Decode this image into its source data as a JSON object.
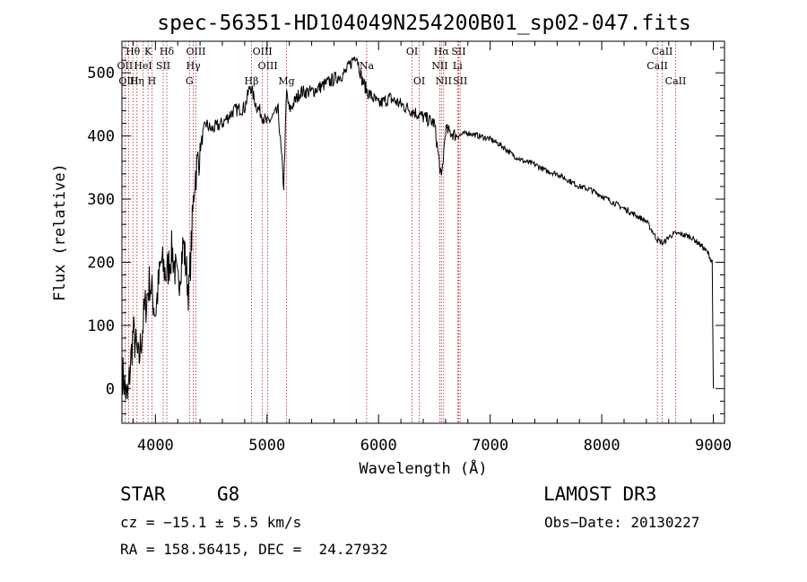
{
  "chart_data": {
    "type": "line",
    "title": "spec-56351-HD104049N254200B01_sp02-047.fits",
    "xlabel": "Wavelength (Å)",
    "ylabel": "Flux (relative)",
    "xlim": [
      3700,
      9100
    ],
    "ylim": [
      -55,
      550
    ],
    "xticks": [
      4000,
      5000,
      6000,
      7000,
      8000,
      9000
    ],
    "yticks": [
      0,
      100,
      200,
      300,
      400,
      500
    ],
    "line_color": "#000000",
    "marker_color": "#b22222",
    "series": [
      {
        "name": "flux",
        "x": [
          3700,
          3750,
          3800,
          3850,
          3900,
          3950,
          4000,
          4050,
          4100,
          4150,
          4200,
          4250,
          4300,
          4350,
          4400,
          4450,
          4500,
          4600,
          4700,
          4800,
          4850,
          4900,
          5000,
          5100,
          5150,
          5175,
          5200,
          5300,
          5400,
          5500,
          5600,
          5700,
          5800,
          5850,
          5900,
          6000,
          6100,
          6200,
          6300,
          6400,
          6500,
          6563,
          6600,
          6700,
          6800,
          6900,
          7000,
          7100,
          7200,
          7300,
          7400,
          7500,
          7600,
          7700,
          7800,
          7900,
          8000,
          8100,
          8200,
          8300,
          8400,
          8500,
          8550,
          8600,
          8650,
          8700,
          8800,
          8900,
          8950,
          8990,
          9000
        ],
        "y": [
          30,
          -20,
          90,
          40,
          120,
          170,
          120,
          200,
          180,
          220,
          160,
          230,
          150,
          330,
          380,
          420,
          410,
          420,
          440,
          445,
          480,
          450,
          420,
          440,
          320,
          470,
          440,
          470,
          470,
          480,
          490,
          500,
          530,
          490,
          470,
          450,
          460,
          450,
          440,
          430,
          420,
          330,
          410,
          400,
          405,
          400,
          395,
          385,
          370,
          360,
          355,
          345,
          340,
          330,
          320,
          315,
          305,
          295,
          285,
          275,
          265,
          235,
          230,
          240,
          245,
          245,
          240,
          225,
          215,
          200,
          0
        ]
      }
    ],
    "spectral_lines": [
      {
        "label": "Hθ",
        "x": 3798,
        "row": 1
      },
      {
        "label": "OII",
        "x": 3727,
        "row": 2
      },
      {
        "label": "OIII",
        "x": 3760,
        "row": 3
      },
      {
        "label": "K",
        "x": 3934,
        "row": 1
      },
      {
        "label": "HeI",
        "x": 3889,
        "row": 2
      },
      {
        "label": "Hη",
        "x": 3835,
        "row": 3
      },
      {
        "label": "H",
        "x": 3969,
        "row": 3
      },
      {
        "label": "SII",
        "x": 4070,
        "row": 2
      },
      {
        "label": "Hδ",
        "x": 4102,
        "row": 1
      },
      {
        "label": "OIII",
        "x": 4363,
        "row": 1
      },
      {
        "label": "Hγ",
        "x": 4340,
        "row": 2
      },
      {
        "label": "G",
        "x": 4305,
        "row": 3
      },
      {
        "label": "OIII",
        "x": 4959,
        "row": 1
      },
      {
        "label": "OIII",
        "x": 5007,
        "row": 2
      },
      {
        "label": "Hβ",
        "x": 4861,
        "row": 3
      },
      {
        "label": "Mg",
        "x": 5175,
        "row": 3
      },
      {
        "label": "Na",
        "x": 5893,
        "row": 2
      },
      {
        "label": "OI",
        "x": 6300,
        "row": 1
      },
      {
        "label": "OI",
        "x": 6364,
        "row": 3
      },
      {
        "label": "Hα",
        "x": 6563,
        "row": 1
      },
      {
        "label": "SII",
        "x": 6717,
        "row": 1
      },
      {
        "label": "NII",
        "x": 6548,
        "row": 2
      },
      {
        "label": "Li",
        "x": 6708,
        "row": 2
      },
      {
        "label": "NII",
        "x": 6583,
        "row": 3
      },
      {
        "label": "SII",
        "x": 6731,
        "row": 3
      },
      {
        "label": "CaII",
        "x": 8542,
        "row": 1
      },
      {
        "label": "CaII",
        "x": 8498,
        "row": 2
      },
      {
        "label": "CaII",
        "x": 8662,
        "row": 3
      }
    ]
  },
  "info": {
    "object_type": "STAR",
    "subclass": "G8",
    "survey": "LAMOST DR3",
    "cz": "cz = −15.1 ± 5.5 km/s",
    "obs_date": "Obs−Date: 20130227",
    "coords": "RA = 158.56415, DEC =  24.27932"
  }
}
